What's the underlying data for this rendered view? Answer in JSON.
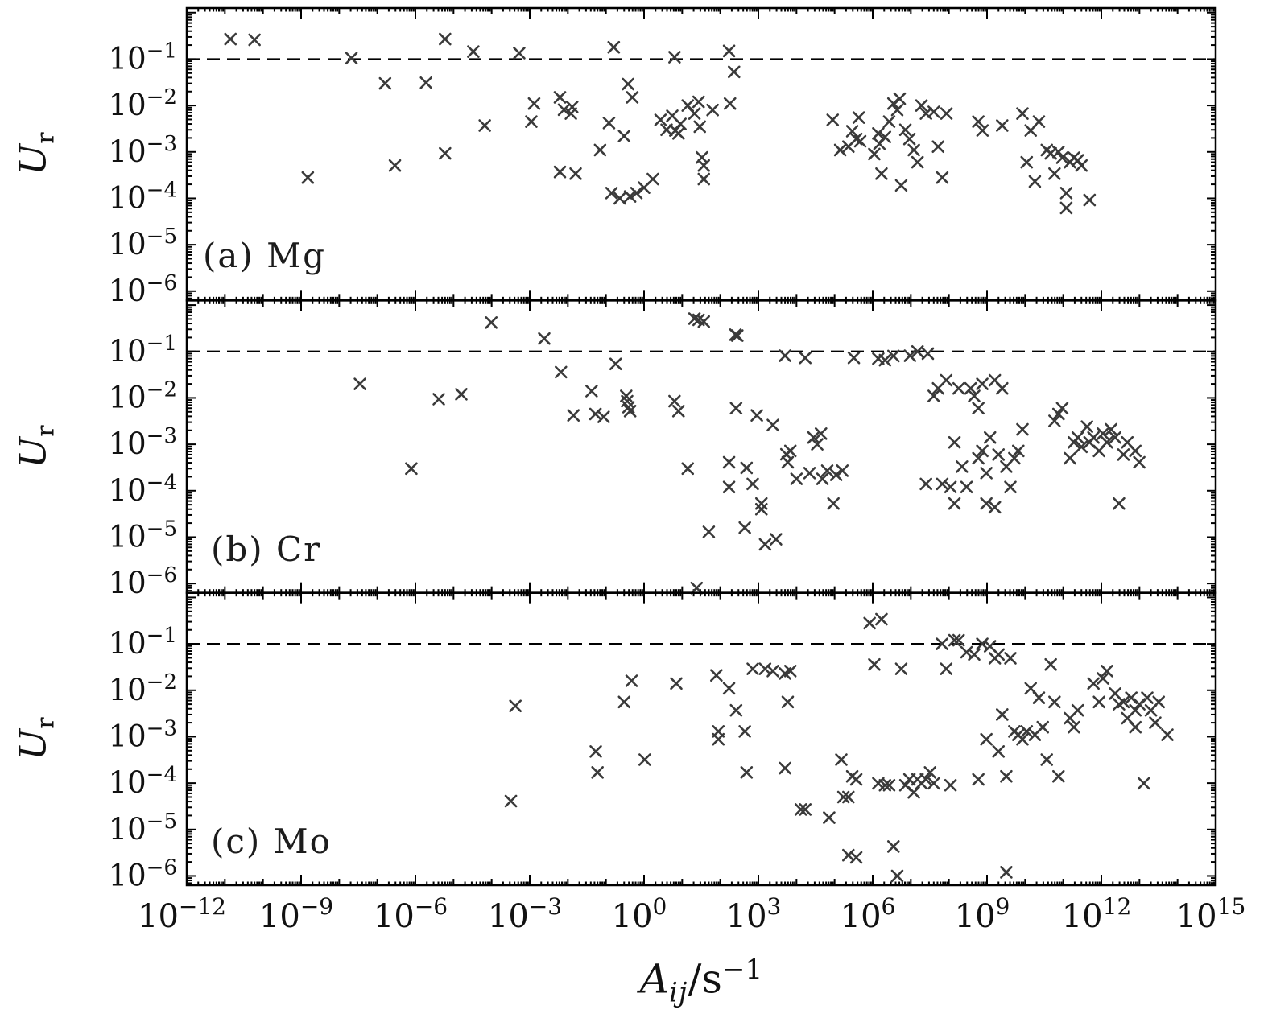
{
  "figure": {
    "xlabel_main": "A",
    "xlabel_sub": "ij",
    "xlabel_mid": "/s",
    "xlabel_sup": "−1",
    "x_axis": {
      "min_exp": -12,
      "max_exp": 15,
      "labeled_ticks_exp": [
        -12,
        -9,
        -6,
        -3,
        0,
        3,
        6,
        9,
        12,
        15
      ]
    },
    "y_axis": {
      "top_exp": 0.1,
      "bottom_exp": -6.2,
      "labeled_ticks_exp": [
        -1,
        -2,
        -3,
        -4,
        -5,
        -6
      ]
    },
    "threshold": 0.1,
    "marker": {
      "shape": "x",
      "color": "#3a3a3a"
    },
    "axis_color": "#000000"
  },
  "chart_data": [
    {
      "type": "scatter",
      "panel_label": "(a) Mg",
      "ylabel_main": "U",
      "ylabel_sub": "r",
      "xlim_exp": [
        -12,
        15
      ],
      "ylim_exp": [
        -6.2,
        0.1
      ],
      "threshold_line_y": 0.1,
      "points": [
        [
          1.4e-11,
          0.27
        ],
        [
          6e-11,
          0.26
        ],
        [
          1.5e-09,
          0.00028
        ],
        [
          2.1e-08,
          0.105
        ],
        [
          1.6e-07,
          0.03
        ],
        [
          2.9e-07,
          0.00051
        ],
        [
          1.9e-06,
          0.031
        ],
        [
          6e-06,
          0.27
        ],
        [
          6e-06,
          0.00093
        ],
        [
          3.3e-05,
          0.145
        ],
        [
          6.6e-05,
          0.0037
        ],
        [
          0.00053,
          0.135
        ],
        [
          0.0013,
          0.011
        ],
        [
          0.0011,
          0.0045
        ],
        [
          0.0062,
          0.015
        ],
        [
          0.0079,
          0.0081
        ],
        [
          0.013,
          0.0093
        ],
        [
          0.012,
          0.0067
        ],
        [
          0.0062,
          0.00037
        ],
        [
          0.016,
          0.00034
        ],
        [
          0.07,
          0.0011
        ],
        [
          0.12,
          0.0042
        ],
        [
          0.3,
          0.0022
        ],
        [
          0.16,
          0.18
        ],
        [
          0.38,
          0.029
        ],
        [
          0.49,
          0.015
        ],
        [
          0.14,
          0.00013
        ],
        [
          0.23,
          0.0001
        ],
        [
          0.43,
          0.00011
        ],
        [
          0.63,
          0.00013
        ],
        [
          1.0,
          0.00017
        ],
        [
          1.7,
          0.00026
        ],
        [
          2.7,
          0.0049
        ],
        [
          3.9,
          0.003
        ],
        [
          5.5,
          0.006
        ],
        [
          6.3,
          0.11
        ],
        [
          6.6,
          0.0029
        ],
        [
          8.0,
          0.0025
        ],
        [
          9.0,
          0.004
        ],
        [
          14.0,
          0.01
        ],
        [
          21.0,
          0.0067
        ],
        [
          27.0,
          0.012
        ],
        [
          29.0,
          0.0035
        ],
        [
          33.0,
          0.00076
        ],
        [
          37.0,
          0.00051
        ],
        [
          37.0,
          0.00026
        ],
        [
          63.0,
          0.008
        ],
        [
          170.0,
          0.15
        ],
        [
          180.0,
          0.011
        ],
        [
          230.0,
          0.053
        ],
        [
          89000.0,
          0.0049
        ],
        [
          140000.0,
          0.0011
        ],
        [
          230000.0,
          0.0013
        ],
        [
          290000.0,
          0.0028
        ],
        [
          370000.0,
          0.0019
        ],
        [
          430000.0,
          0.0055
        ],
        [
          470000.0,
          0.0017
        ],
        [
          1100000.0,
          0.0009
        ],
        [
          1400000.0,
          0.0025
        ],
        [
          1500000.0,
          0.0015
        ],
        [
          1700000.0,
          0.00034
        ],
        [
          2100000.0,
          0.0021
        ],
        [
          2700000.0,
          0.0045
        ],
        [
          3500000.0,
          0.011
        ],
        [
          4400000.0,
          0.008
        ],
        [
          5100000.0,
          0.014
        ],
        [
          5600000.0,
          0.00019
        ],
        [
          7200000.0,
          0.003
        ],
        [
          9200000.0,
          0.0019
        ],
        [
          12000000.0,
          0.0011
        ],
        [
          15000000.0,
          0.0006
        ],
        [
          19000000.0,
          0.01
        ],
        [
          25000000.0,
          0.0067
        ],
        [
          40000000.0,
          0.0073
        ],
        [
          52000000.0,
          0.0013
        ],
        [
          67000000.0,
          0.00028
        ],
        [
          86000000.0,
          0.0067
        ],
        [
          590000000.0,
          0.0045
        ],
        [
          760000000.0,
          0.0029
        ],
        [
          2500000000.0,
          0.0037
        ],
        [
          8500000000.0,
          0.0067
        ],
        [
          11000000000.0,
          0.0006
        ],
        [
          14000000000.0,
          0.0029
        ],
        [
          18000000000.0,
          0.00023
        ],
        [
          23000000000.0,
          0.0045
        ],
        [
          37000000000.0,
          0.0011
        ],
        [
          47000000000.0,
          0.00093
        ],
        [
          59000000000.0,
          0.00034
        ],
        [
          75000000000.0,
          0.001
        ],
        [
          94000000000.0,
          0.00075
        ],
        [
          120000000000.0,
          6.2e-05
        ],
        [
          120000000000.0,
          0.00013
        ],
        [
          150000000000.0,
          0.0006
        ],
        [
          190000000000.0,
          0.00075
        ],
        [
          240000000000.0,
          0.00066
        ],
        [
          300000000000.0,
          0.00051
        ],
        [
          490000000000.0,
          9.2e-05
        ]
      ]
    },
    {
      "type": "scatter",
      "panel_label": "(b) Cr",
      "ylabel_main": "U",
      "ylabel_sub": "r",
      "xlim_exp": [
        -12,
        15
      ],
      "ylim_exp": [
        -6.2,
        0.1
      ],
      "threshold_line_y": 0.1,
      "points": [
        [
          9.8e-05,
          0.42
        ],
        [
          0.0024,
          0.19
        ],
        [
          0.0066,
          0.036
        ],
        [
          3.5e-08,
          0.02
        ],
        [
          4.1e-06,
          0.0094
        ],
        [
          1.6e-05,
          0.012
        ],
        [
          7.8e-07,
          0.0003
        ],
        [
          0.014,
          0.0042
        ],
        [
          0.042,
          0.014
        ],
        [
          0.053,
          0.0045
        ],
        [
          0.087,
          0.0039
        ],
        [
          0.18,
          0.054
        ],
        [
          0.34,
          0.011
        ],
        [
          0.36,
          0.0085
        ],
        [
          0.39,
          0.0063
        ],
        [
          0.43,
          0.0052
        ],
        [
          6.3,
          0.0085
        ],
        [
          8.0,
          0.0052
        ],
        [
          14.0,
          0.0003
        ],
        [
          21.0,
          0.51
        ],
        [
          27.0,
          0.48
        ],
        [
          37.0,
          0.44
        ],
        [
          50.0,
          1.3e-05
        ],
        [
          24.0,
          8e-07
        ],
        [
          170.0,
          0.00041
        ],
        [
          170.0,
          0.00012
        ],
        [
          250.0,
          0.23
        ],
        [
          280.0,
          0.22
        ],
        [
          260.0,
          0.006
        ],
        [
          440.0,
          1.6e-05
        ],
        [
          490.0,
          0.00031
        ],
        [
          710.0,
          0.00014
        ],
        [
          910.0,
          0.0042
        ],
        [
          1200.0,
          5.3e-05
        ],
        [
          1200.0,
          4e-05
        ],
        [
          1500.0,
          7e-06
        ],
        [
          2400.0,
          0.0026
        ],
        [
          2900.0,
          9e-06
        ],
        [
          5000.0,
          0.081
        ],
        [
          5400.0,
          0.00061
        ],
        [
          5900.0,
          0.00041
        ],
        [
          6900.0,
          0.00072
        ],
        [
          10000.0,
          0.00018
        ],
        [
          17000.0,
          0.073
        ],
        [
          22000.0,
          0.00024
        ],
        [
          28000.0,
          0.0014
        ],
        [
          35000.0,
          0.001
        ],
        [
          44000.0,
          0.0017
        ],
        [
          48000.0,
          0.00018
        ],
        [
          64000.0,
          0.00027
        ],
        [
          93000.0,
          5.3e-05
        ],
        [
          110000.0,
          0.00022
        ],
        [
          160000.0,
          0.00027
        ],
        [
          320000.0,
          0.073
        ],
        [
          1400000.0,
          0.07
        ],
        [
          2100000.0,
          0.065
        ],
        [
          3500000.0,
          0.08
        ],
        [
          9500000.0,
          0.081
        ],
        [
          15000000.0,
          0.1
        ],
        [
          28000000.0,
          0.09
        ],
        [
          25000000.0,
          0.00014
        ],
        [
          40000000.0,
          0.011
        ],
        [
          52000000.0,
          0.016
        ],
        [
          67000000.0,
          0.00014
        ],
        [
          85000000.0,
          0.024
        ],
        [
          110000000.0,
          0.00012
        ],
        [
          140000000.0,
          0.0011
        ],
        [
          140000000.0,
          5.3e-05
        ],
        [
          180000000.0,
          0.016
        ],
        [
          220000000.0,
          0.00033
        ],
        [
          290000000.0,
          0.00012
        ],
        [
          370000000.0,
          0.016
        ],
        [
          460000000.0,
          0.011
        ],
        [
          590000000.0,
          0.0005
        ],
        [
          590000000.0,
          0.006
        ],
        [
          750000000.0,
          0.02
        ],
        [
          750000000.0,
          0.00072
        ],
        [
          960000000.0,
          5.3e-05
        ],
        [
          960000000.0,
          0.00024
        ],
        [
          1200000000.0,
          0.0014
        ],
        [
          1600000000.0,
          0.024
        ],
        [
          1600000000.0,
          4.4e-05
        ],
        [
          2000000000.0,
          0.0006
        ],
        [
          2500000000.0,
          0.016
        ],
        [
          3200000000.0,
          0.00033
        ],
        [
          4100000000.0,
          0.00012
        ],
        [
          5200000000.0,
          0.0005
        ],
        [
          6600000000.0,
          0.00072
        ],
        [
          8500000000.0,
          0.0021
        ],
        [
          59000000000.0,
          0.0032
        ],
        [
          75000000000.0,
          0.0045
        ],
        [
          94000000000.0,
          0.006
        ],
        [
          150000000000.0,
          0.0005
        ],
        [
          190000000000.0,
          0.0011
        ],
        [
          240000000000.0,
          0.0014
        ],
        [
          300000000000.0,
          0.00088
        ],
        [
          420000000000.0,
          0.0024
        ],
        [
          490000000000.0,
          0.0011
        ],
        [
          620000000000.0,
          0.0014
        ],
        [
          870000000000.0,
          0.00072
        ],
        [
          1100000000000.0,
          0.0017
        ],
        [
          1400000000000.0,
          0.0011
        ],
        [
          1800000000000.0,
          0.0021
        ],
        [
          2300000000000.0,
          0.0014
        ],
        [
          2900000000000.0,
          5.3e-05
        ],
        [
          3800000000000.0,
          0.0006
        ],
        [
          4800000000000.0,
          0.0011
        ],
        [
          7800000000000.0,
          0.00072
        ],
        [
          9900000000000.0,
          0.00041
        ]
      ]
    },
    {
      "type": "scatter",
      "panel_label": "(c) Mo",
      "ylabel_main": "U",
      "ylabel_sub": "r",
      "xlim_exp": [
        -12,
        15
      ],
      "ylim_exp": [
        -6.2,
        0.1
      ],
      "threshold_line_y": 0.1,
      "points": [
        [
          0.00042,
          0.0046
        ],
        [
          0.00032,
          4.1e-05
        ],
        [
          0.054,
          0.00048
        ],
        [
          0.06,
          0.00017
        ],
        [
          0.3,
          0.0056
        ],
        [
          0.47,
          0.016
        ],
        [
          1.04,
          0.00032
        ],
        [
          7.0,
          0.014
        ],
        [
          79.0,
          0.021
        ],
        [
          89.0,
          0.0013
        ],
        [
          89.0,
          0.00088
        ],
        [
          170.0,
          0.011
        ],
        [
          260.0,
          0.0037
        ],
        [
          440.0,
          0.0013
        ],
        [
          490.0,
          0.00017
        ],
        [
          710.0,
          0.029
        ],
        [
          1500.0,
          0.029
        ],
        [
          2400.0,
          0.026
        ],
        [
          5000.0,
          0.023
        ],
        [
          5900.0,
          0.0056
        ],
        [
          5000.0,
          0.00021
        ],
        [
          6900.0,
          0.026
        ],
        [
          13000.0,
          2.7e-05
        ],
        [
          17000.0,
          2.7e-05
        ],
        [
          72000.0,
          1.8e-05
        ],
        [
          150000.0,
          0.00032
        ],
        [
          170000.0,
          5e-05
        ],
        [
          230000.0,
          5e-05
        ],
        [
          230000.0,
          2.8e-06
        ],
        [
          290000.0,
          0.00014
        ],
        [
          370000.0,
          2.5e-06
        ],
        [
          370000.0,
          0.00012
        ],
        [
          830000.0,
          0.28
        ],
        [
          1100000.0,
          0.036
        ],
        [
          1400000.0,
          9.9e-05
        ],
        [
          1700000.0,
          0.34
        ],
        [
          2100000.0,
          9e-05
        ],
        [
          2700000.0,
          9e-05
        ],
        [
          3500000.0,
          4.3e-06
        ],
        [
          4400000.0,
          1e-06
        ],
        [
          5600000.0,
          0.029
        ],
        [
          7200000.0,
          9e-05
        ],
        [
          9200000.0,
          0.00012
        ],
        [
          12000000.0,
          6.3e-05
        ],
        [
          15000000.0,
          0.00012
        ],
        [
          19000000.0,
          9.9e-05
        ],
        [
          25000000.0,
          0.00012
        ],
        [
          32000000.0,
          0.00017
        ],
        [
          40000000.0,
          9.9e-05
        ],
        [
          66000000.0,
          0.1
        ],
        [
          85000000.0,
          0.029
        ],
        [
          110000000.0,
          9e-05
        ],
        [
          140000000.0,
          0.12
        ],
        [
          180000000.0,
          0.12
        ],
        [
          290000000.0,
          0.066
        ],
        [
          460000000.0,
          0.059
        ],
        [
          590000000.0,
          0.00012
        ],
        [
          750000000.0,
          0.1
        ],
        [
          960000000.0,
          0.00088
        ],
        [
          1200000000.0,
          0.089
        ],
        [
          1600000000.0,
          0.049
        ],
        [
          2000000000.0,
          0.059
        ],
        [
          2000000000.0,
          0.00048
        ],
        [
          2500000000.0,
          0.003
        ],
        [
          3200000000.0,
          0.00014
        ],
        [
          3200000000.0,
          1.2e-06
        ],
        [
          4100000000.0,
          0.049
        ],
        [
          5200000000.0,
          0.0013
        ],
        [
          6600000000.0,
          0.0011
        ],
        [
          8500000000.0,
          0.00088
        ],
        [
          11000000000.0,
          0.0013
        ],
        [
          14000000000.0,
          0.011
        ],
        [
          18000000000.0,
          0.0011
        ],
        [
          23000000000.0,
          0.0069
        ],
        [
          29000000000.0,
          0.0016
        ],
        [
          37000000000.0,
          0.00032
        ],
        [
          47000000000.0,
          0.036
        ],
        [
          59000000000.0,
          0.0056
        ],
        [
          75000000000.0,
          0.00014
        ],
        [
          150000000000.0,
          0.0025
        ],
        [
          190000000000.0,
          0.0016
        ],
        [
          240000000000.0,
          0.0037
        ],
        [
          620000000000.0,
          0.014
        ],
        [
          870000000000.0,
          0.0056
        ],
        [
          1100000000000.0,
          0.018
        ],
        [
          1400000000000.0,
          0.026
        ],
        [
          2300000000000.0,
          0.0085
        ],
        [
          2900000000000.0,
          0.005
        ],
        [
          3800000000000.0,
          0.0056
        ],
        [
          4800000000000.0,
          0.0025
        ],
        [
          6100000000000.0,
          0.0069
        ],
        [
          7800000000000.0,
          0.0037
        ],
        [
          7800000000000.0,
          0.0016
        ],
        [
          9900000000000.0,
          0.005
        ],
        [
          13000000000000.0,
          9.9e-05
        ],
        [
          16000000000000.0,
          0.0069
        ],
        [
          20000000000000.0,
          0.0037
        ],
        [
          26000000000000.0,
          0.002
        ],
        [
          32000000000000.0,
          0.0056
        ],
        [
          54000000000000.0,
          0.0011
        ]
      ]
    }
  ]
}
